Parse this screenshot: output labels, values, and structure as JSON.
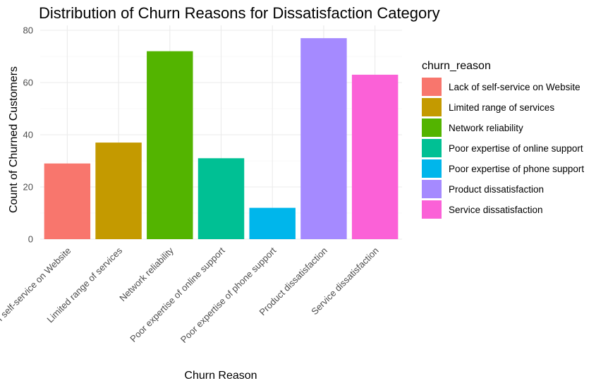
{
  "chart_data": {
    "type": "bar",
    "title": "Distribution of Churn Reasons for Dissatisfaction Category",
    "xlabel": "Churn Reason",
    "ylabel": "Count of Churned Customers",
    "categories": [
      "Lack of self-service on Website",
      "Limited range of services",
      "Network reliability",
      "Poor expertise of online support",
      "Poor expertise of phone support",
      "Product dissatisfaction",
      "Service dissatisfaction"
    ],
    "values": [
      29,
      37,
      72,
      31,
      12,
      77,
      63
    ],
    "colors": [
      "#F8766D",
      "#C49A00",
      "#53B400",
      "#00C094",
      "#00B6EB",
      "#A58AFF",
      "#FB61D7"
    ],
    "ylim": [
      0,
      80
    ],
    "yticks": [
      "0",
      "20",
      "40",
      "60",
      "80"
    ],
    "grid": true,
    "legend": {
      "title": "churn_reason",
      "position": "right",
      "items": [
        "Lack of self-service on Website",
        "Limited range of services",
        "Network reliability",
        "Poor expertise of online support",
        "Poor expertise of phone support",
        "Product dissatisfaction",
        "Service dissatisfaction"
      ]
    }
  }
}
